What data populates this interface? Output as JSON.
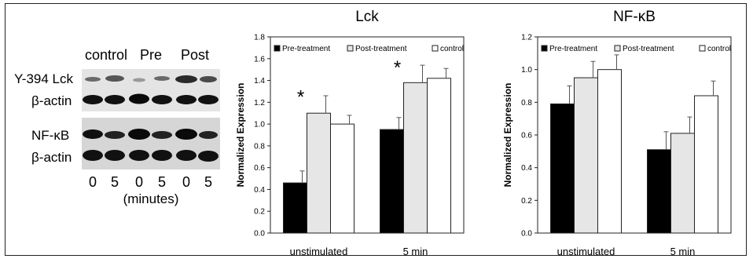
{
  "blot": {
    "columns": [
      "control",
      "Pre",
      "Post"
    ],
    "row_labels": [
      "Y-394 Lck",
      "β-actin",
      "NF-κB",
      "β-actin"
    ],
    "lane_times": [
      "0",
      "5",
      "0",
      "5",
      "0",
      "5"
    ],
    "time_unit": "(minutes)"
  },
  "chart_data": [
    {
      "type": "bar",
      "title": "Lck",
      "xlabel": "",
      "ylabel": "Normalized Expression",
      "categories": [
        "unstimulated",
        "5 min"
      ],
      "ylim": [
        0,
        1.8
      ],
      "yticks": [
        "0.0",
        "0.2",
        "0.4",
        "0.6",
        "0.8",
        "1.0",
        "1.2",
        "1.4",
        "1.6",
        "1.8"
      ],
      "series": [
        {
          "name": "Pre-treatment",
          "values": [
            0.46,
            0.95
          ],
          "errors": [
            0.11,
            0.11
          ],
          "color": "#000000"
        },
        {
          "name": "Post-treatment",
          "values": [
            1.1,
            1.38
          ],
          "errors": [
            0.16,
            0.16
          ],
          "color": "#e6e6e6"
        },
        {
          "name": "control",
          "values": [
            1.0,
            1.42
          ],
          "errors": [
            0.08,
            0.09
          ],
          "color": "#ffffff"
        }
      ],
      "annotations": [
        {
          "text": "*",
          "category": "unstimulated",
          "value": 1.25
        },
        {
          "text": "*",
          "category": "5 min",
          "value": 1.52
        }
      ],
      "grid": false,
      "legend": "top"
    },
    {
      "type": "bar",
      "title": "NF-κB",
      "xlabel": "",
      "ylabel": "Normalized Expression",
      "categories": [
        "unstimulated",
        "5 min"
      ],
      "ylim": [
        0,
        1.2
      ],
      "yticks": [
        "0.0",
        "0.2",
        "0.4",
        "0.6",
        "0.8",
        "1.0",
        "1.2"
      ],
      "series": [
        {
          "name": "Pre-treatment",
          "values": [
            0.79,
            0.51
          ],
          "errors": [
            0.11,
            0.11
          ],
          "color": "#000000"
        },
        {
          "name": "Post-treatment",
          "values": [
            0.95,
            0.61
          ],
          "errors": [
            0.1,
            0.1
          ],
          "color": "#e6e6e6"
        },
        {
          "name": "control",
          "values": [
            1.0,
            0.84
          ],
          "errors": [
            0.09,
            0.09
          ],
          "color": "#ffffff"
        }
      ],
      "annotations": [],
      "grid": false,
      "legend": "top"
    }
  ]
}
